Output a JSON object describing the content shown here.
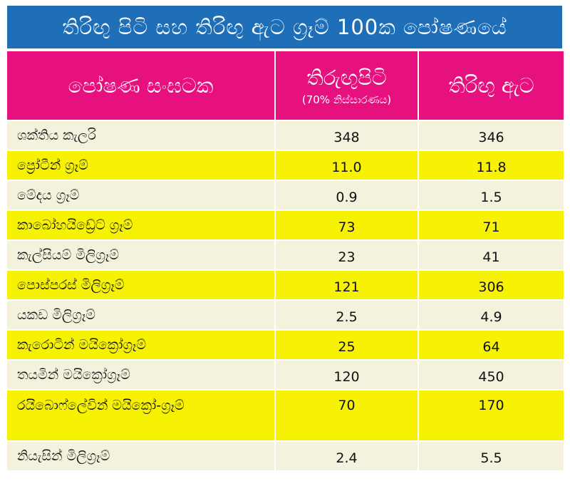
{
  "title": "තිරිඟු පිටි සහ තිරිඟු ඇට ග්‍රෑම් 100ක පෝෂණයේ",
  "headers": {
    "component": "පෝෂණ සංඝටක",
    "flour": "තිරුඟුපිටි",
    "flour_note": "(70% නිස්සාරණය)",
    "grain": "තිරිඟු ඇට"
  },
  "rows": [
    {
      "name": "ශක්තිය කැලරි",
      "flour": "348",
      "grain": "346"
    },
    {
      "name": "ප්‍රෝටීන් ග්‍රෑම්",
      "flour": "11.0",
      "grain": "11.8"
    },
    {
      "name": "මේදය ග්‍රෑම්",
      "flour": "0.9",
      "grain": "1.5"
    },
    {
      "name": "කාබෝහයිඩ්‍රේට් ග්‍රෑම්",
      "flour": "73",
      "grain": "71"
    },
    {
      "name": "කැල්සියම් මිලිග්‍රෑම්",
      "flour": "23",
      "grain": "41"
    },
    {
      "name": "පොස්පරස් මිලිග්‍රෑම්",
      "flour": "121",
      "grain": "306"
    },
    {
      "name": "යකඩ මිලිග්‍රෑම්",
      "flour": "2.5",
      "grain": "4.9"
    },
    {
      "name": "කැරොටින් මයික්‍රෝග්‍රෑම්",
      "flour": "25",
      "grain": "64"
    },
    {
      "name": "තයමින් මයික්‍රෝග්‍රෑම්",
      "flour": "120",
      "grain": "450"
    },
    {
      "name": "රයිබොෆ්ලේවින් මයික්‍රෝ-ග්‍රෑම්",
      "flour": "70",
      "grain": "170"
    },
    {
      "name": "නියැසින් මිලිග්‍රෑම්",
      "flour": "2.4",
      "grain": "5.5"
    }
  ],
  "colors": {
    "title_bg": "#1f6fb8",
    "header_bg": "#e6117e",
    "row_odd": "#f4f1dc",
    "row_even": "#f7f204"
  }
}
